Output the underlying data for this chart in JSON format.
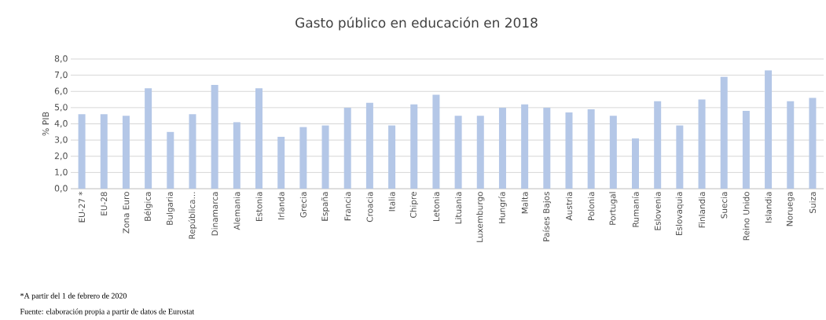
{
  "chart_data": {
    "type": "bar",
    "title": "Gasto público en educación en 2018",
    "ylabel": "% PIB",
    "categories": [
      "EU-27 *",
      "EU-28",
      "Zona Euro",
      "Bélgica",
      "Bulgaria",
      "República...",
      "Dinamarca",
      "Alemania",
      "Estonia",
      "Irlanda",
      "Grecia",
      "España",
      "Francia",
      "Croacia",
      "Italia",
      "Chipre",
      "Letonia",
      "Lituania",
      "Luxemburgo",
      "Hungría",
      "Malta",
      "Países Bajos",
      "Austria",
      "Polonia",
      "Portugal",
      "Rumanía",
      "Eslovenia",
      "Eslovaquia",
      "Finlandia",
      "Suecia",
      "Reino Unido",
      "Islandia",
      "Noruega",
      "Suiza"
    ],
    "values": [
      4.6,
      4.6,
      4.5,
      6.2,
      3.5,
      4.6,
      6.4,
      4.1,
      6.2,
      3.2,
      3.8,
      3.9,
      5.0,
      5.3,
      3.9,
      5.2,
      5.8,
      4.5,
      4.5,
      5.0,
      5.2,
      5.0,
      4.7,
      4.9,
      4.5,
      3.1,
      5.4,
      3.9,
      5.5,
      6.9,
      4.8,
      7.3,
      5.4,
      5.6
    ],
    "color": "#b4c7e7",
    "ylim": [
      0,
      8
    ],
    "yticks": [
      {
        "value": 0,
        "label": "0,0"
      },
      {
        "value": 1,
        "label": "1,0"
      },
      {
        "value": 2,
        "label": "2,0"
      },
      {
        "value": 3,
        "label": "3,0"
      },
      {
        "value": 4,
        "label": "4,0"
      },
      {
        "value": 5,
        "label": "5,0"
      },
      {
        "value": 6,
        "label": "6,0"
      },
      {
        "value": 7,
        "label": "7,0"
      },
      {
        "value": 8,
        "label": "8,0"
      }
    ],
    "grid": "y",
    "annotations": [
      "*A partir del 1 de febrero de 2020",
      "Fuente: elaboración propia a partir de datos de Eurostat"
    ]
  }
}
